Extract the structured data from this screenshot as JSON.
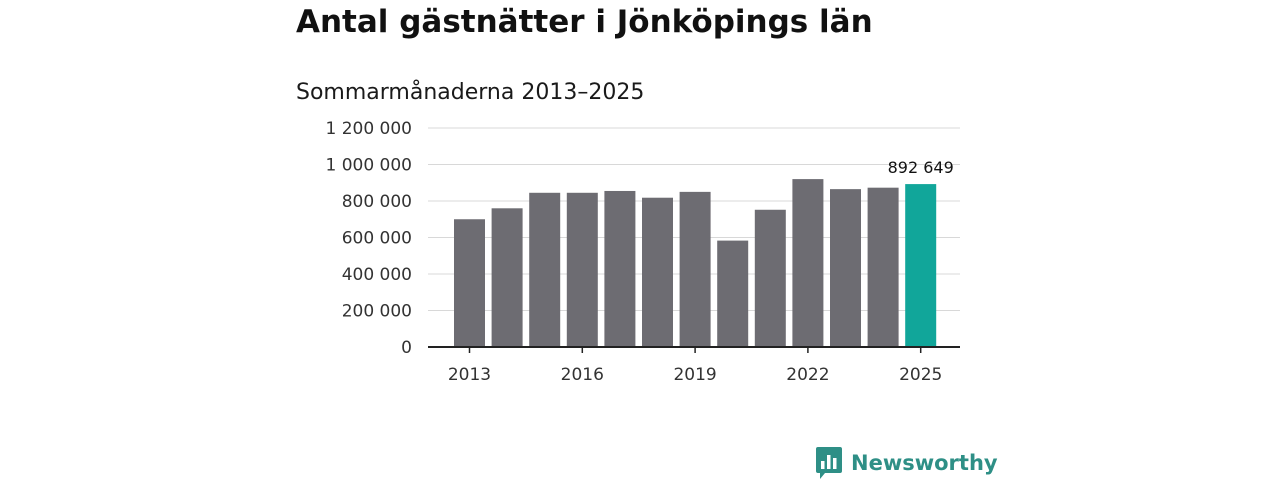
{
  "chart_data": {
    "type": "bar",
    "title": "Antal gästnätter i Jönköpings län",
    "subtitle": "Sommarmånaderna 2013–2025",
    "categories": [
      "2013",
      "2014",
      "2015",
      "2016",
      "2017",
      "2018",
      "2019",
      "2020",
      "2021",
      "2022",
      "2023",
      "2024",
      "2025"
    ],
    "values": [
      700000,
      760000,
      845000,
      845000,
      855000,
      818000,
      850000,
      583000,
      752000,
      920000,
      865000,
      873000,
      892649
    ],
    "ylim": [
      0,
      1200000
    ],
    "yticks": [
      0,
      200000,
      400000,
      600000,
      800000,
      1000000,
      1200000
    ],
    "ytick_labels": [
      "0",
      "200 000",
      "400 000",
      "600 000",
      "800 000",
      "1 000 000",
      "1 200 000"
    ],
    "xtick_labels": [
      "2013",
      "2016",
      "2019",
      "2022",
      "2025"
    ],
    "xtick_categories": [
      "2013",
      "2016",
      "2019",
      "2022",
      "2025"
    ],
    "grid": true,
    "colors": {
      "bar": "#6d6c72",
      "highlight": "#11a69a",
      "grid": "#d8d8d8",
      "axis": "#222222"
    },
    "highlight_category": "2025",
    "data_label": "892 649"
  },
  "brand": {
    "name": "Newsworthy",
    "logo_icon": "bar-chart-bubble-icon",
    "color": "#2e8f86"
  }
}
